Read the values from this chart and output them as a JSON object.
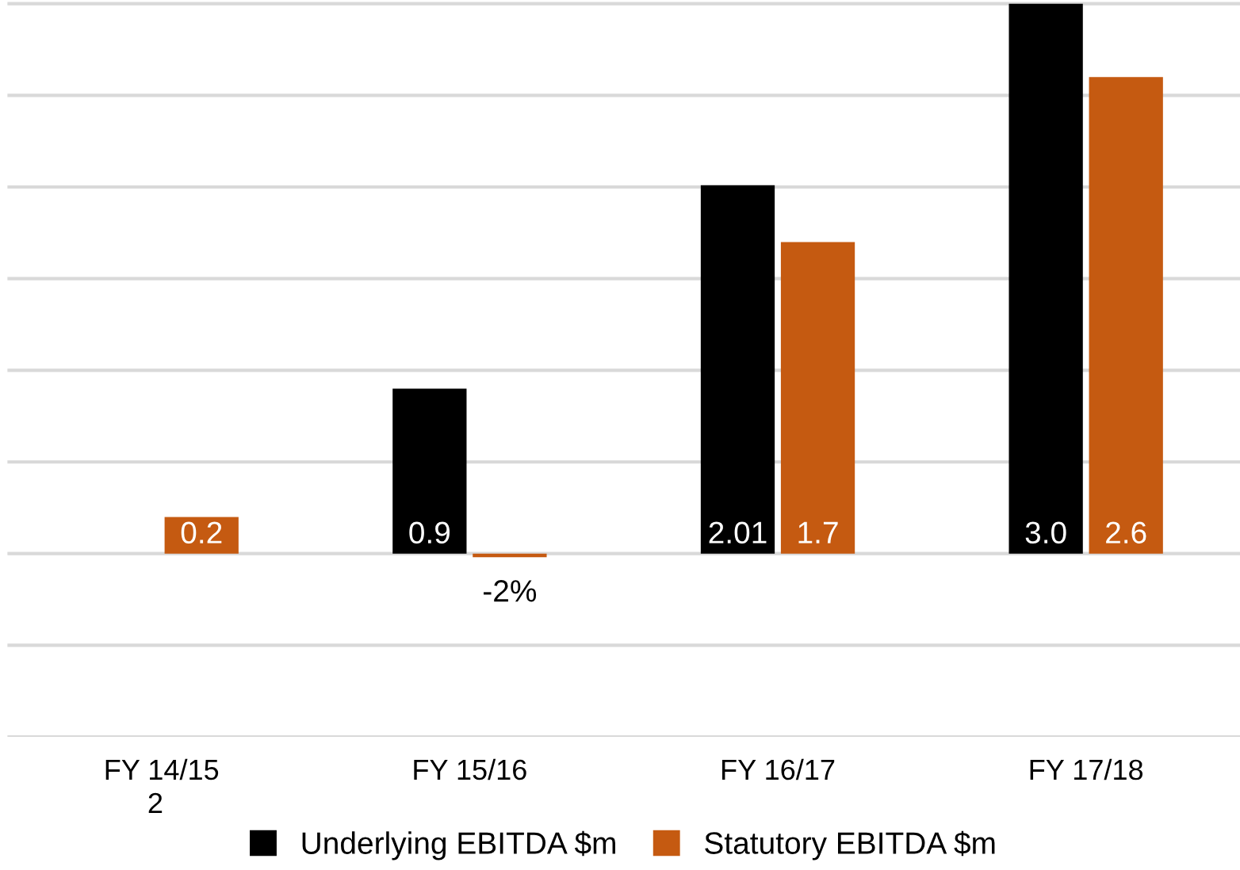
{
  "chart_data": {
    "type": "bar",
    "categories": [
      "FY 14/15",
      "FY 15/16",
      "FY 16/17",
      "FY 17/18"
    ],
    "series": [
      {
        "name": "Underlying EBITDA $m",
        "color": "#000000",
        "values": [
          null,
          0.9,
          2.01,
          3.0
        ],
        "value_labels": [
          null,
          "0.9",
          "2.01",
          "3.0"
        ]
      },
      {
        "name": "Statutory EBITDA $m",
        "color": "#c55a11",
        "values": [
          0.2,
          -0.02,
          1.7,
          2.6
        ],
        "value_labels": [
          "0.2",
          "-2%",
          "1.7",
          "2.6"
        ]
      }
    ],
    "ylim": [
      -1.0,
      3.02
    ],
    "yticks": [
      {
        "value": -1.0,
        "label": null
      },
      {
        "value": -0.5,
        "label": null
      },
      {
        "value": 0,
        "label": null
      },
      {
        "value": 0.5,
        "label": null
      },
      {
        "value": 1.0,
        "label": null
      },
      {
        "value": 1.5,
        "label": null
      },
      {
        "value": 2.0,
        "label": null
      },
      {
        "value": 2.5,
        "label": null
      },
      {
        "value": 3.0,
        "label": null
      }
    ],
    "grid": "y",
    "legend": "bottom",
    "tick_labels": "x",
    "annotations": [
      "2"
    ]
  }
}
